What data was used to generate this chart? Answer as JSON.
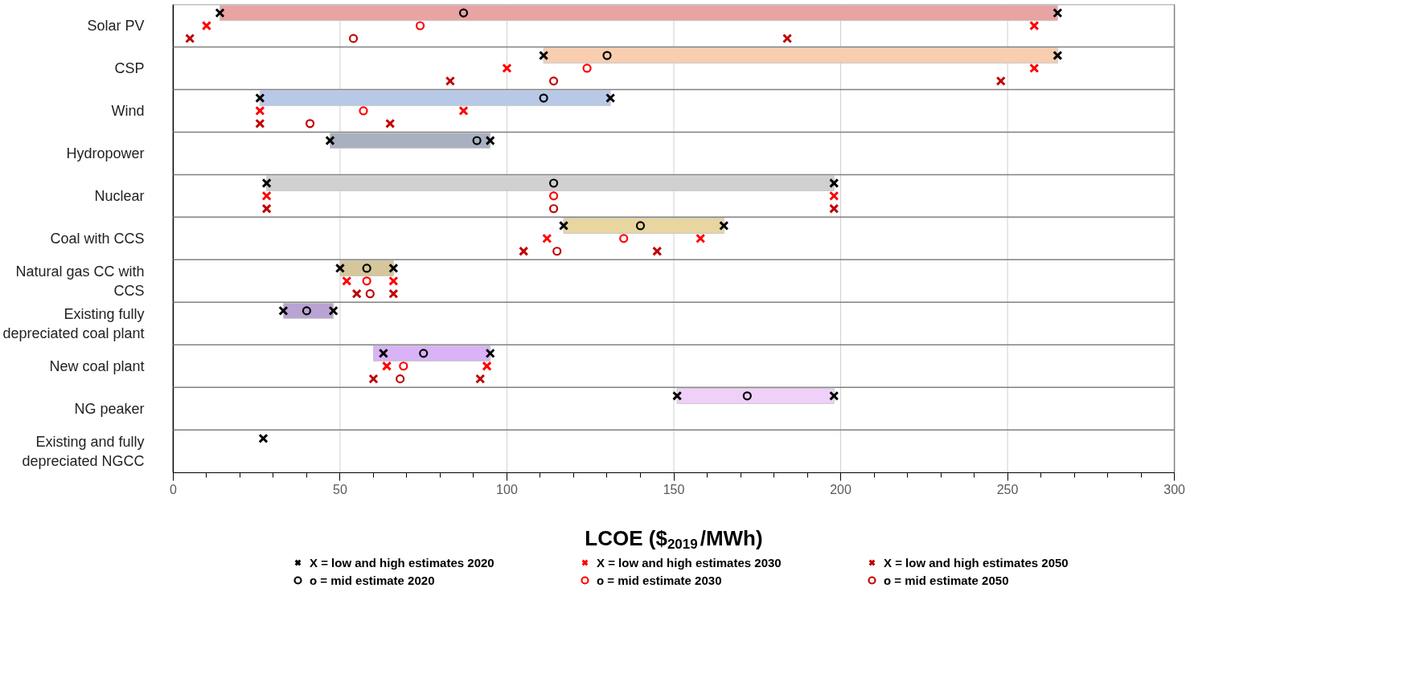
{
  "chart_data": {
    "type": "bar",
    "orientation": "horizontal",
    "xlabel": "LCOE ($$_{2019}$/MWh)",
    "categories": [
      "Solar PV",
      "CSP",
      "Wind",
      "Hydropower",
      "Nuclear",
      "Coal with CCS",
      "Natural gas CC with CCS",
      "Existing fully depreciated coal plant",
      "New coal plant",
      "NG peaker",
      "Existing and fully depreciated NGCC"
    ],
    "base": [
      14,
      111,
      26,
      47,
      28,
      117,
      50,
      33,
      60,
      151,
      null
    ],
    "values": [
      251,
      154,
      105,
      48,
      170,
      48,
      16,
      15,
      35,
      47,
      null
    ],
    "colors": [
      "#e8a3a3",
      "#f8cdb0",
      "#b8c9e8",
      "#a9b1c1",
      "#d0d0d0",
      "#e8d5a0",
      "#d6c79a",
      "#b8a3d2",
      "#d9b3f5",
      "#efd0f8",
      "#ffffff"
    ],
    "series": [
      {
        "name": "X = low and high estimates 2020",
        "type": "scatter",
        "marker": "cross",
        "color": "#000000",
        "x": [
          "Solar PV",
          "Solar PV",
          "CSP",
          "CSP",
          "Wind",
          "Wind",
          "Hydropower",
          "Hydropower",
          "Nuclear",
          "Nuclear",
          "Coal with CCS",
          "Coal with CCS",
          "Natural gas CC with CCS",
          "Natural gas CC with CCS",
          "Existing fully depreciated coal plant",
          "Existing fully depreciated coal plant",
          "New coal plant",
          "New coal plant",
          "NG peaker",
          "NG peaker",
          "Existing and fully depreciated NGCC"
        ],
        "values": [
          14,
          265,
          111,
          265,
          26,
          131,
          47,
          95,
          28,
          198,
          117,
          165,
          50,
          66,
          33,
          48,
          63,
          95,
          151,
          198,
          27
        ]
      },
      {
        "name": "o = mid estimate 2020",
        "type": "scatter",
        "marker": "circle",
        "color": "#000000",
        "x": [
          "Solar PV",
          "CSP",
          "Wind",
          "Hydropower",
          "Nuclear",
          "Coal with CCS",
          "Natural gas CC with CCS",
          "Existing fully depreciated coal plant",
          "New coal plant",
          "NG peaker"
        ],
        "values": [
          87,
          130,
          111,
          91,
          114,
          140,
          58,
          40,
          75,
          172
        ]
      },
      {
        "name": "X = low and high estimates 2030",
        "type": "scatter",
        "marker": "cross",
        "color": "#ff0000",
        "x": [
          "Solar PV",
          "Solar PV",
          "CSP",
          "CSP",
          "Wind",
          "Wind",
          "Nuclear",
          "Nuclear",
          "Coal with CCS",
          "Coal with CCS",
          "Natural gas CC with CCS",
          "Natural gas CC with CCS",
          "New coal plant",
          "New coal plant"
        ],
        "values": [
          10,
          258,
          100,
          258,
          26,
          87,
          28,
          198,
          112,
          158,
          52,
          66,
          64,
          94
        ]
      },
      {
        "name": "o = mid estimate 2030",
        "type": "scatter",
        "marker": "circle",
        "color": "#ff0000",
        "x": [
          "Solar PV",
          "CSP",
          "Wind",
          "Nuclear",
          "Coal with CCS",
          "Natural gas CC with CCS",
          "New coal plant"
        ],
        "values": [
          74,
          124,
          57,
          114,
          135,
          58,
          69
        ]
      },
      {
        "name": "X = low and high estimates 2050",
        "type": "scatter",
        "marker": "cross",
        "color": "#c00000",
        "x": [
          "Solar PV",
          "Solar PV",
          "CSP",
          "CSP",
          "Wind",
          "Wind",
          "Nuclear",
          "Nuclear",
          "Coal with CCS",
          "Coal with CCS",
          "Natural gas CC with CCS",
          "Natural gas CC with CCS",
          "New coal plant",
          "New coal plant"
        ],
        "values": [
          5,
          184,
          83,
          248,
          26,
          65,
          28,
          198,
          105,
          145,
          55,
          66,
          60,
          92
        ]
      },
      {
        "name": "o = mid estimate 2050",
        "type": "scatter",
        "marker": "circle",
        "color": "#c00000",
        "x": [
          "Solar PV",
          "CSP",
          "Wind",
          "Nuclear",
          "Coal with CCS",
          "Natural gas CC with CCS",
          "New coal plant"
        ],
        "values": [
          54,
          114,
          41,
          114,
          115,
          59,
          68
        ]
      }
    ],
    "xlim": [
      0,
      300
    ],
    "xticks": [
      0,
      50,
      100,
      150,
      200,
      250,
      300
    ],
    "grid": "x",
    "legend": "bottom"
  }
}
